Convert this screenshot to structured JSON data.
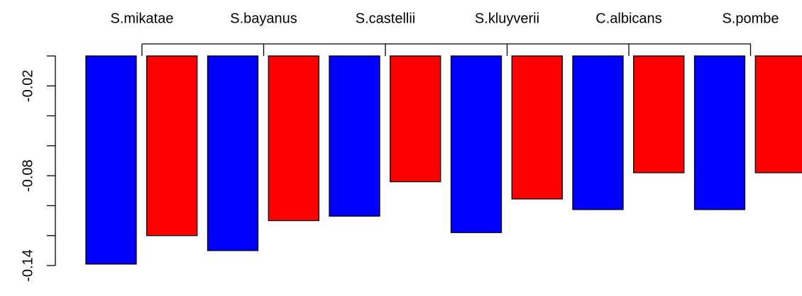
{
  "chart_data": {
    "type": "bar",
    "categories": [
      "S.mikatae",
      "S.bayanus",
      "S.castellii",
      "S.kluyverii",
      "C.albicans",
      "S.pombe"
    ],
    "series": [
      {
        "color": "#0000ff",
        "values": [
          -0.139,
          -0.13,
          -0.107,
          -0.118,
          -0.1026,
          -0.1026
        ]
      },
      {
        "color": "#ff0000",
        "values": [
          -0.12,
          -0.11,
          -0.084,
          -0.0955,
          -0.078,
          -0.078
        ]
      }
    ],
    "ylim": [
      -0.14,
      0
    ],
    "yticks": [
      {
        "value": 0,
        "label": null
      },
      -0.02,
      {
        "value": -0.04,
        "label": null
      },
      {
        "value": -0.06,
        "label": null
      },
      -0.08,
      {
        "value": -0.1,
        "label": null
      },
      {
        "value": -0.12,
        "label": null
      },
      -0.14
    ]
  }
}
